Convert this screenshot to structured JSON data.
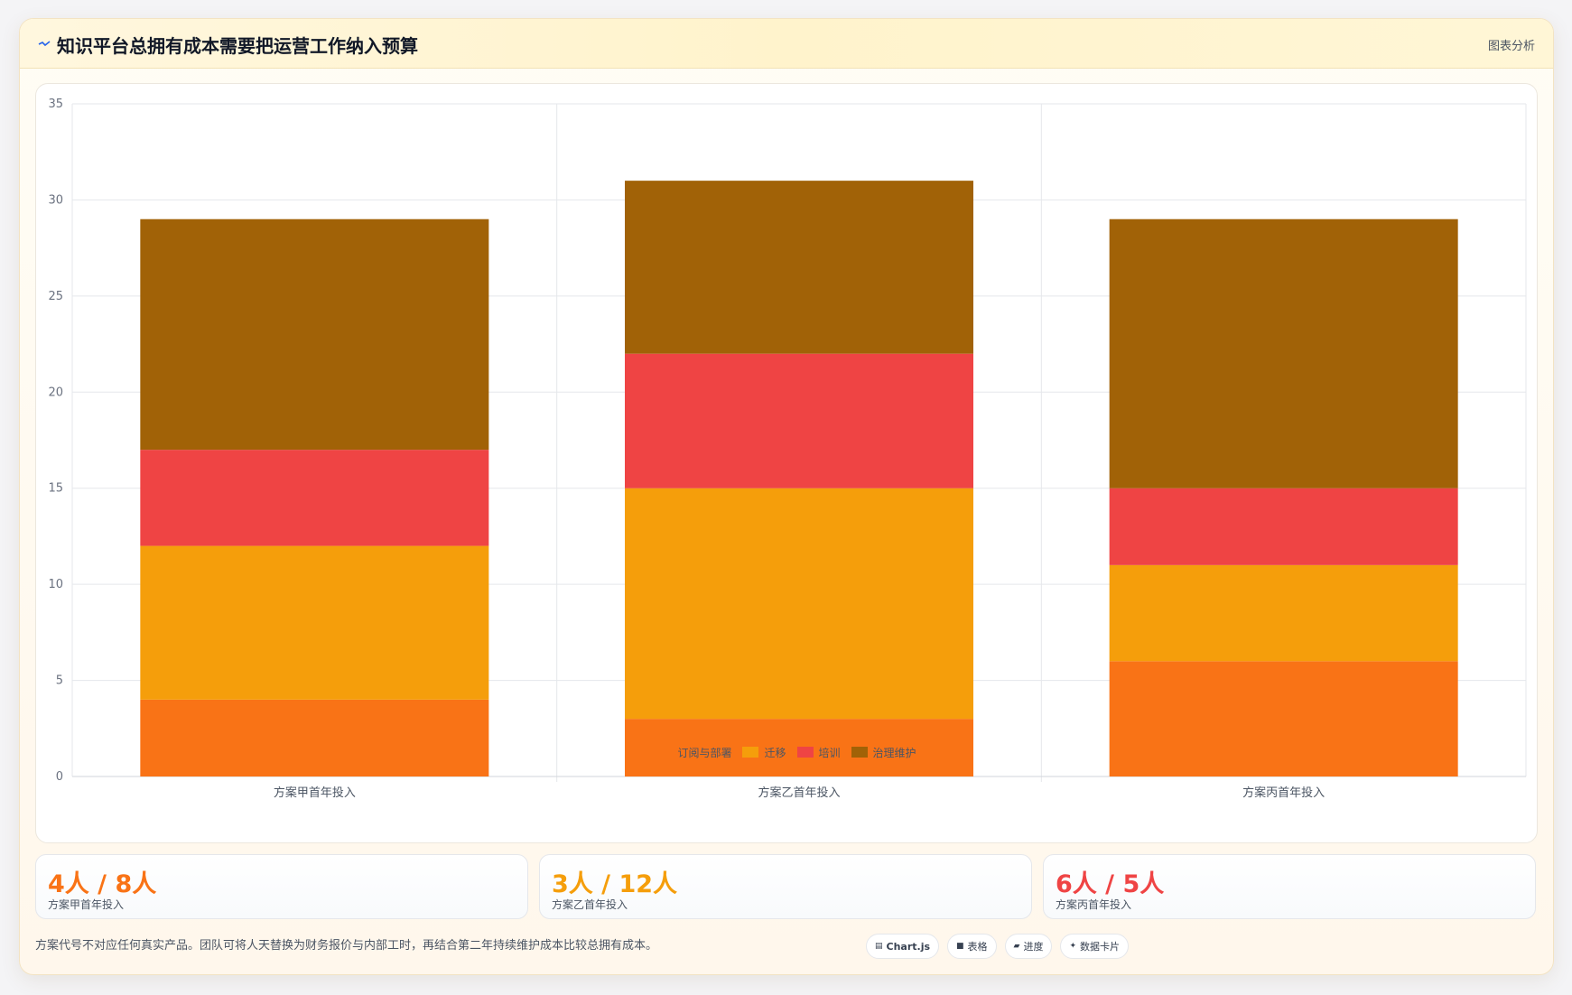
{
  "header": {
    "title": "知识平台总拥有成本需要把运营工作纳入预算",
    "analysis_label": "图表分析",
    "icon": "trend-line-icon"
  },
  "chart_data": {
    "type": "bar",
    "stacked": true,
    "categories": [
      "方案甲首年投入",
      "方案乙首年投入",
      "方案丙首年投入"
    ],
    "series": [
      {
        "name": "订阅与部署",
        "color": "#f97316",
        "values": [
          4,
          3,
          6
        ]
      },
      {
        "name": "迁移",
        "color": "#f59e0b",
        "values": [
          8,
          12,
          5
        ]
      },
      {
        "name": "培训",
        "color": "#ef4444",
        "values": [
          5,
          7,
          4
        ]
      },
      {
        "name": "治理维护",
        "color": "#a16207",
        "values": [
          12,
          9,
          14
        ]
      }
    ],
    "ylim": [
      0,
      35
    ],
    "yticks": [
      0,
      5,
      10,
      15,
      20,
      25,
      30,
      35
    ],
    "grid": true,
    "legend": "bottom-center",
    "title": "",
    "xlabel": "",
    "ylabel": ""
  },
  "stats": [
    {
      "value": "4人 / 8人",
      "label": "方案甲首年投入",
      "color": "#f97316"
    },
    {
      "value": "3人 / 12人",
      "label": "方案乙首年投入",
      "color": "#f59e0b"
    },
    {
      "value": "6人 / 5人",
      "label": "方案丙首年投入",
      "color": "#ef4444"
    }
  ],
  "footnote": "方案代号不对应任何真实产品。团队可将人天替换为财务报价与内部工时，再结合第二年持续维护成本比较总拥有成本。",
  "tools": [
    {
      "icon": "chart-icon",
      "glyph": "▤",
      "label": "Chart.js",
      "bold": true
    },
    {
      "icon": "table-icon",
      "glyph": "■",
      "label": "表格",
      "bold": false
    },
    {
      "icon": "progress-icon",
      "glyph": "▰",
      "label": "进度",
      "bold": false
    },
    {
      "icon": "data-card-icon",
      "glyph": "✦",
      "label": "数据卡片",
      "bold": false
    }
  ]
}
